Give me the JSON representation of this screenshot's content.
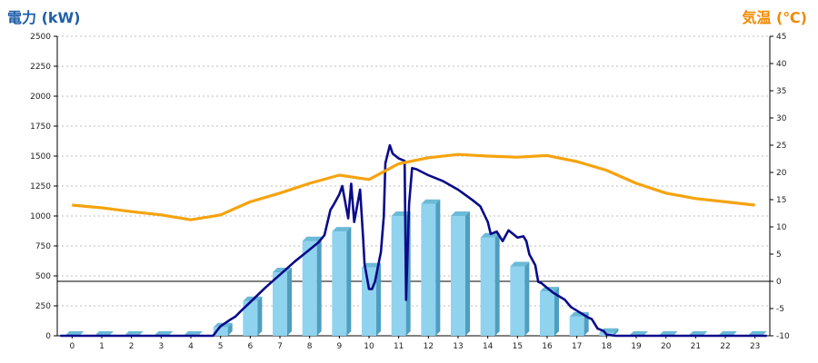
{
  "chart_data": {
    "type": "bar",
    "left_axis_title": "電力 (kW)",
    "right_axis_title": "気温 (℃)",
    "categories": [
      "0",
      "1",
      "2",
      "3",
      "4",
      "5",
      "6",
      "7",
      "8",
      "9",
      "10",
      "11",
      "12",
      "13",
      "14",
      "15",
      "16",
      "17",
      "18",
      "19",
      "20",
      "21",
      "22",
      "23"
    ],
    "left_axis": {
      "min": 0,
      "max": 2500,
      "ticks": [
        0,
        250,
        500,
        750,
        1000,
        1250,
        1500,
        1750,
        2000,
        2250,
        2500
      ]
    },
    "right_axis": {
      "min": -10,
      "max": 45,
      "ticks": [
        -10,
        -5,
        0,
        5,
        10,
        15,
        20,
        25,
        30,
        35,
        40,
        45
      ]
    },
    "grid": true,
    "series": [
      {
        "kind": "bar",
        "axis": "left",
        "values": [
          0,
          0,
          0,
          0,
          0,
          70,
          290,
          530,
          790,
          870,
          570,
          1000,
          1100,
          1000,
          820,
          580,
          370,
          160,
          25,
          0,
          0,
          0,
          0,
          0
        ],
        "color": "#8fd3ee"
      },
      {
        "kind": "line",
        "axis": "left",
        "color": "#0a0a8a",
        "points": [
          [
            -0.4,
            0
          ],
          [
            4.75,
            0
          ],
          [
            4.9,
            50
          ],
          [
            5,
            80
          ],
          [
            5.3,
            130
          ],
          [
            5.5,
            160
          ],
          [
            5.7,
            210
          ],
          [
            6,
            280
          ],
          [
            6.5,
            400
          ],
          [
            7,
            510
          ],
          [
            7.5,
            620
          ],
          [
            8,
            720
          ],
          [
            8.3,
            780
          ],
          [
            8.5,
            840
          ],
          [
            8.7,
            1050
          ],
          [
            8.8,
            1090
          ],
          [
            9,
            1180
          ],
          [
            9.1,
            1250
          ],
          [
            9.3,
            980
          ],
          [
            9.4,
            1270
          ],
          [
            9.5,
            950
          ],
          [
            9.7,
            1220
          ],
          [
            9.8,
            820
          ],
          [
            9.85,
            600
          ],
          [
            10,
            390
          ],
          [
            10.1,
            390
          ],
          [
            10.2,
            450
          ],
          [
            10.4,
            700
          ],
          [
            10.5,
            1000
          ],
          [
            10.55,
            1440
          ],
          [
            10.7,
            1590
          ],
          [
            10.8,
            1520
          ],
          [
            11,
            1480
          ],
          [
            11.2,
            1460
          ],
          [
            11.25,
            300
          ],
          [
            11.35,
            1100
          ],
          [
            11.45,
            1400
          ],
          [
            11.6,
            1390
          ],
          [
            12,
            1340
          ],
          [
            12.5,
            1290
          ],
          [
            13,
            1220
          ],
          [
            13.5,
            1130
          ],
          [
            13.75,
            1080
          ],
          [
            14,
            950
          ],
          [
            14.1,
            850
          ],
          [
            14.3,
            870
          ],
          [
            14.5,
            790
          ],
          [
            14.7,
            880
          ],
          [
            14.9,
            840
          ],
          [
            15,
            820
          ],
          [
            15.2,
            830
          ],
          [
            15.3,
            790
          ],
          [
            15.4,
            680
          ],
          [
            15.6,
            590
          ],
          [
            15.7,
            450
          ],
          [
            15.8,
            440
          ],
          [
            16.2,
            360
          ],
          [
            16.6,
            300
          ],
          [
            16.8,
            240
          ],
          [
            17,
            210
          ],
          [
            17.4,
            150
          ],
          [
            17.5,
            140
          ],
          [
            17.6,
            100
          ],
          [
            17.7,
            60
          ],
          [
            17.9,
            40
          ],
          [
            18,
            10
          ],
          [
            18.3,
            0
          ],
          [
            23.4,
            0
          ]
        ]
      },
      {
        "kind": "line",
        "axis": "right",
        "color": "#f5a30f",
        "values": [
          14,
          13.5,
          12.8,
          12.2,
          11.3,
          12.2,
          14.6,
          16.2,
          18,
          19.5,
          18.7,
          21.6,
          22.7,
          23.3,
          23,
          22.8,
          23.1,
          22,
          20.4,
          18,
          16.2,
          15.2,
          14.6,
          14
        ]
      }
    ]
  }
}
